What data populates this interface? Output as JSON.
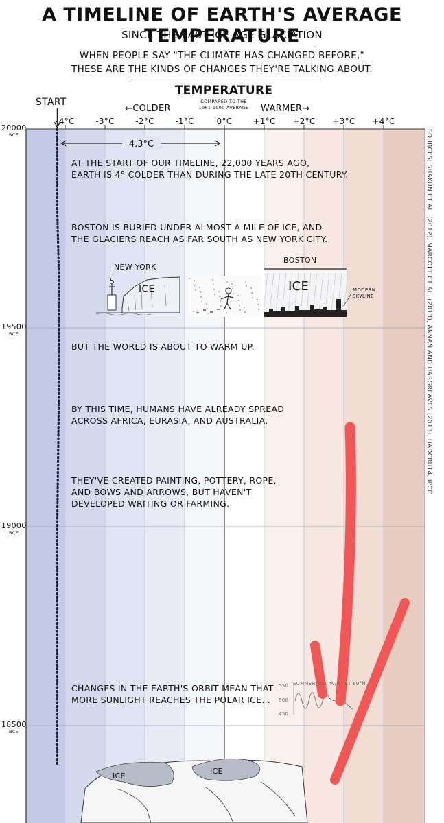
{
  "header": {
    "title": "A TIMELINE OF EARTH'S AVERAGE TEMPERATURE",
    "subtitle": "SINCE THE LAST ICE AGE GLACIATION",
    "intro_line1": "WHEN PEOPLE SAY \"THE CLIMATE HAS CHANGED BEFORE,\"",
    "intro_line2": "THESE ARE THE KINDS OF CHANGES THEY'RE TALKING ABOUT."
  },
  "axis": {
    "heading": "TEMPERATURE",
    "sub_line1": "COMPARED TO THE",
    "sub_line2": "1961-1990 AVERAGE",
    "colder": "←COLDER",
    "warmer": "WARMER→",
    "start": "START",
    "ticks": [
      "-4°C",
      "-3°C",
      "-2°C",
      "-1°C",
      "0°C",
      "+1°C",
      "+2°C",
      "+3°C",
      "+4°C"
    ]
  },
  "chart_data": {
    "type": "line",
    "xlabel": "TEMPERATURE",
    "x_ticks": [
      -4,
      -3,
      -2,
      -1,
      0,
      1,
      2,
      3,
      4
    ],
    "y_ticks": [
      {
        "year": 20000,
        "label": "20000",
        "suffix": "BCE"
      },
      {
        "year": 19500,
        "label": "19500",
        "suffix": "BCE"
      },
      {
        "year": 19000,
        "label": "19000",
        "suffix": "BCE"
      },
      {
        "year": 18500,
        "label": "18500",
        "suffix": "BCE"
      }
    ],
    "series": [
      {
        "x": [
          -4.2,
          -4.2,
          -4.15,
          -4.15,
          -4.2,
          -4.2
        ],
        "y": [
          20000,
          19800,
          19600,
          19400,
          19000,
          18400
        ]
      }
    ],
    "difference_label": "4.3°C"
  },
  "notes": [
    {
      "lines": [
        "AT THE START OF OUR TIMELINE, 22,000 YEARS AGO,",
        "EARTH IS 4° COLDER THAN DURING THE LATE 20TH CENTURY."
      ]
    },
    {
      "lines": [
        "BOSTON IS BURIED UNDER ALMOST A MILE OF ICE, AND",
        "THE GLACIERS REACH AS FAR SOUTH AS NEW YORK CITY."
      ]
    },
    {
      "lines": [
        "BUT THE WORLD IS ABOUT TO WARM UP."
      ]
    },
    {
      "lines": [
        "BY THIS TIME, HUMANS HAVE ALREADY SPREAD",
        "ACROSS AFRICA, EURASIA, AND AUSTRALIA."
      ]
    },
    {
      "lines": [
        "THEY'VE CREATED PAINTING, POTTERY, ROPE,",
        "AND BOWS AND ARROWS, BUT HAVEN'T",
        "DEVELOPED WRITING OR FARMING."
      ]
    },
    {
      "lines": [
        "CHANGES IN THE EARTH'S ORBIT MEAN THAT",
        "MORE SUNLIGHT REACHES THE POLAR ICE..."
      ]
    }
  ],
  "illustrations": {
    "new_york": "NEW YORK",
    "ice": "ICE",
    "boston": "BOSTON",
    "modern_skyline": "MODERN SKYLINE",
    "insolation": {
      "label": "SUMMER SUN W/M² AT 60°N",
      "ticks": [
        "550",
        "500",
        "450"
      ]
    },
    "map_ice": "ICE"
  },
  "sources": "SOURCES: SHAKUN ET AL. (2012), MARCOTT ET AL. (2013), ANNAN AND HARGREAVES (2013), HADCRUT4, IPCC",
  "colors": {
    "cold": "#c3c9e6",
    "warm": "#e7cdbf",
    "annotation_red": "#f25757"
  }
}
